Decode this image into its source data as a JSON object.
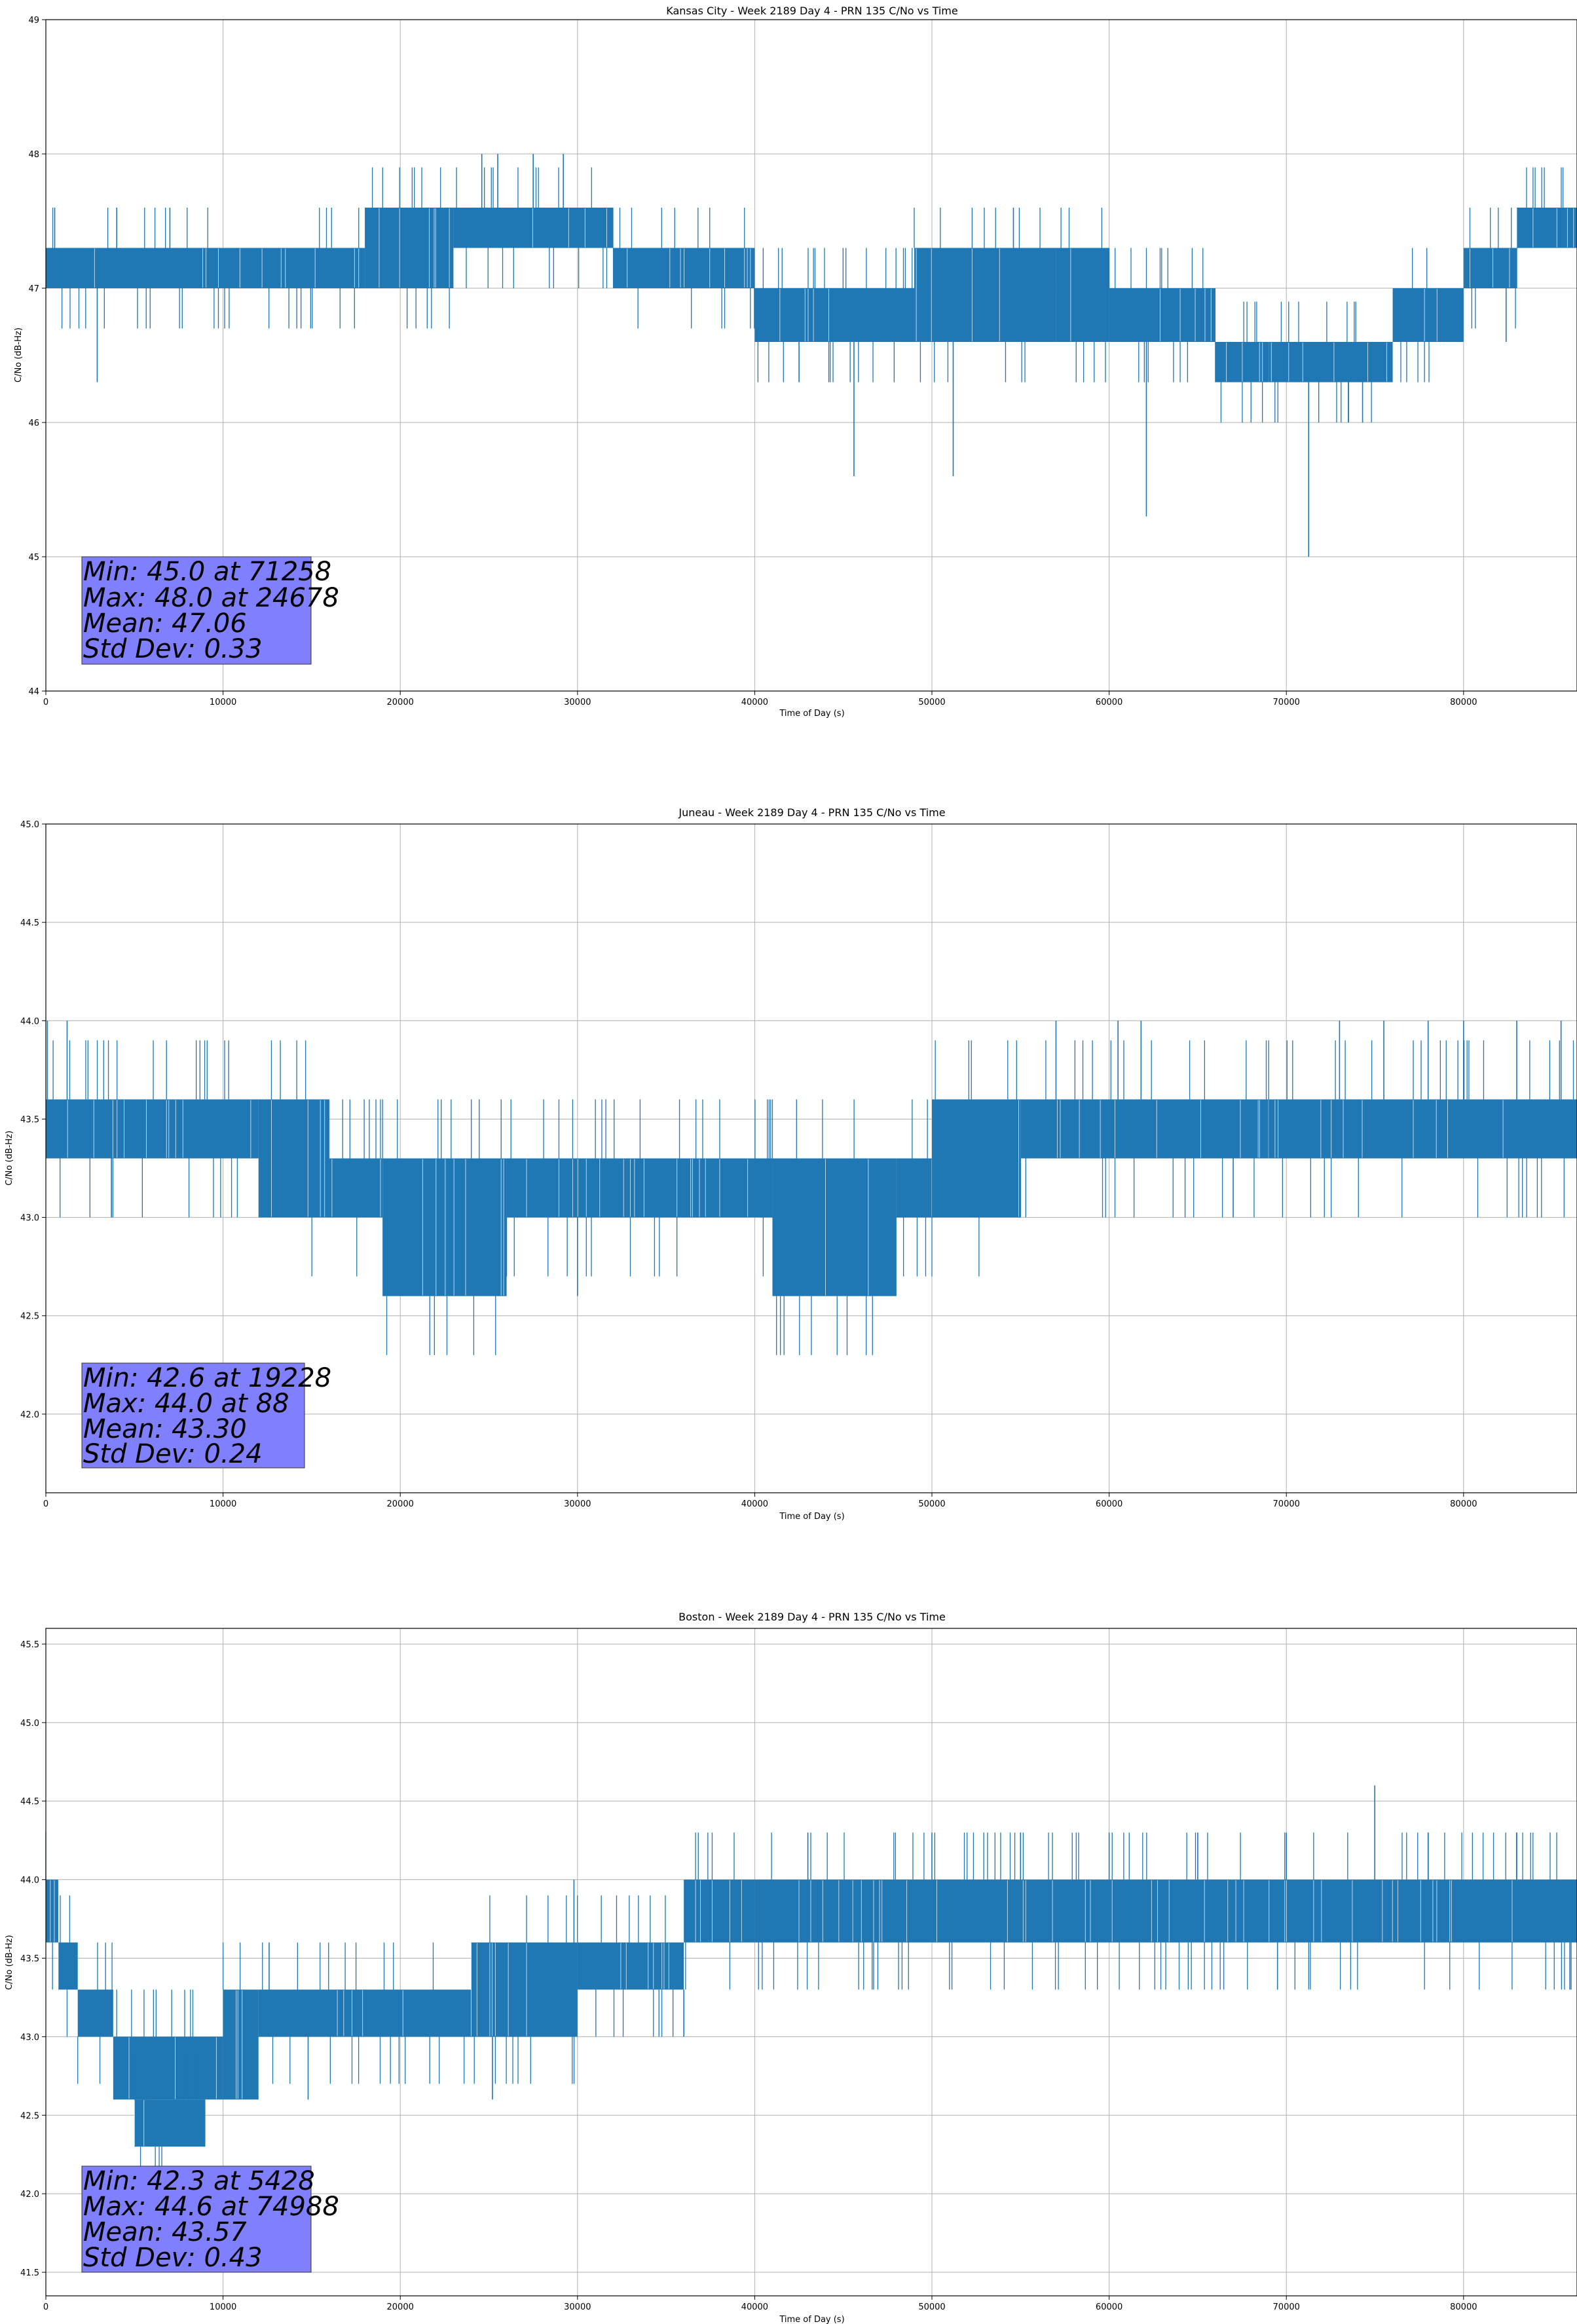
{
  "colors": {
    "series": "#1f77b4",
    "stats_box": "#8080ff",
    "grid": "#b0b0b0"
  },
  "chart_data": [
    {
      "type": "line",
      "title": "Kansas City - Week 2189 Day 4 - PRN 135 C/No vs Time",
      "xlabel": "Time of Day (s)",
      "ylabel": "C/No (dB-Hz)",
      "xlim": [
        0,
        86400
      ],
      "ylim": [
        44,
        49
      ],
      "xticks": [
        0,
        10000,
        20000,
        30000,
        40000,
        50000,
        60000,
        70000,
        80000
      ],
      "yticks": [
        44,
        45,
        46,
        47,
        48,
        49
      ],
      "ytick_labels": [
        "44",
        "45",
        "46",
        "47",
        "48",
        "49"
      ],
      "grid": true,
      "series": [
        {
          "levels": [
            {
              "x0": 0,
              "x1": 11000,
              "lo": 47.0,
              "hi": 47.3
            },
            {
              "x0": 11000,
              "x1": 18000,
              "lo": 47.0,
              "hi": 47.3
            },
            {
              "x0": 18000,
              "x1": 23000,
              "lo": 47.0,
              "hi": 47.6
            },
            {
              "x0": 23000,
              "x1": 32000,
              "lo": 47.3,
              "hi": 47.6
            },
            {
              "x0": 32000,
              "x1": 40000,
              "lo": 47.0,
              "hi": 47.3
            },
            {
              "x0": 40000,
              "x1": 49000,
              "lo": 46.6,
              "hi": 47.0
            },
            {
              "x0": 49000,
              "x1": 57000,
              "lo": 46.6,
              "hi": 47.3
            },
            {
              "x0": 57000,
              "x1": 60000,
              "lo": 46.6,
              "hi": 47.3
            },
            {
              "x0": 60000,
              "x1": 66000,
              "lo": 46.6,
              "hi": 47.0
            },
            {
              "x0": 66000,
              "x1": 69000,
              "lo": 46.3,
              "hi": 46.6
            },
            {
              "x0": 69000,
              "x1": 76000,
              "lo": 46.3,
              "hi": 46.6
            },
            {
              "x0": 76000,
              "x1": 80000,
              "lo": 46.6,
              "hi": 47.0
            },
            {
              "x0": 80000,
              "x1": 83000,
              "lo": 47.0,
              "hi": 47.3
            },
            {
              "x0": 83000,
              "x1": 86400,
              "lo": 47.3,
              "hi": 47.6
            }
          ],
          "spikes": [
            {
              "x": 500,
              "y": 47.6
            },
            {
              "x": 2900,
              "y": 46.3
            },
            {
              "x": 4000,
              "y": 47.6
            },
            {
              "x": 7000,
              "y": 47.6
            },
            {
              "x": 24600,
              "y": 48.0
            },
            {
              "x": 25500,
              "y": 48.0
            },
            {
              "x": 27500,
              "y": 48.0
            },
            {
              "x": 29200,
              "y": 48.0
            },
            {
              "x": 42500,
              "y": 46.3
            },
            {
              "x": 45600,
              "y": 45.6
            },
            {
              "x": 51200,
              "y": 45.6
            },
            {
              "x": 54600,
              "y": 47.6
            },
            {
              "x": 62100,
              "y": 45.3
            },
            {
              "x": 68800,
              "y": 46.3
            },
            {
              "x": 71258,
              "y": 45.0
            },
            {
              "x": 73500,
              "y": 46.0
            },
            {
              "x": 74300,
              "y": 46.0
            },
            {
              "x": 82400,
              "y": 46.6
            }
          ]
        }
      ],
      "stats": [
        "Min: 45.0 at 71258",
        "Max: 48.0 at 24678",
        "Mean: 47.06",
        "Std Dev: 0.33"
      ]
    },
    {
      "type": "line",
      "title": "Juneau - Week 2189 Day 4 - PRN 135 C/No vs Time",
      "xlabel": "Time of Day (s)",
      "ylabel": "C/No (dB-Hz)",
      "xlim": [
        0,
        86400
      ],
      "ylim": [
        41.6,
        45.0
      ],
      "xticks": [
        0,
        10000,
        20000,
        30000,
        40000,
        50000,
        60000,
        70000,
        80000
      ],
      "yticks": [
        42.0,
        42.5,
        43.0,
        43.5,
        44.0,
        44.5,
        45.0
      ],
      "ytick_labels": [
        "42.0",
        "42.5",
        "43.0",
        "43.5",
        "44.0",
        "44.5",
        "45.0"
      ],
      "grid": true,
      "series": [
        {
          "levels": [
            {
              "x0": 0,
              "x1": 12000,
              "lo": 43.3,
              "hi": 43.6
            },
            {
              "x0": 12000,
              "x1": 16000,
              "lo": 43.0,
              "hi": 43.6
            },
            {
              "x0": 16000,
              "x1": 19000,
              "lo": 43.0,
              "hi": 43.3
            },
            {
              "x0": 19000,
              "x1": 26000,
              "lo": 42.6,
              "hi": 43.3
            },
            {
              "x0": 26000,
              "x1": 41000,
              "lo": 43.0,
              "hi": 43.3
            },
            {
              "x0": 41000,
              "x1": 48000,
              "lo": 42.6,
              "hi": 43.3
            },
            {
              "x0": 48000,
              "x1": 50000,
              "lo": 43.0,
              "hi": 43.3
            },
            {
              "x0": 50000,
              "x1": 55000,
              "lo": 43.0,
              "hi": 43.6
            },
            {
              "x0": 55000,
              "x1": 69000,
              "lo": 43.3,
              "hi": 43.6
            },
            {
              "x0": 69000,
              "x1": 86400,
              "lo": 43.3,
              "hi": 43.6
            }
          ],
          "spikes": [
            {
              "x": 88,
              "y": 44.0
            },
            {
              "x": 1200,
              "y": 44.0
            },
            {
              "x": 3700,
              "y": 43.0
            },
            {
              "x": 30000,
              "y": 42.6
            },
            {
              "x": 57000,
              "y": 44.0
            },
            {
              "x": 60500,
              "y": 44.0
            },
            {
              "x": 61800,
              "y": 44.0
            },
            {
              "x": 67000,
              "y": 43.0
            },
            {
              "x": 73000,
              "y": 44.0
            },
            {
              "x": 75500,
              "y": 44.0
            },
            {
              "x": 78000,
              "y": 44.0
            },
            {
              "x": 80000,
              "y": 44.0
            },
            {
              "x": 83000,
              "y": 44.0
            },
            {
              "x": 85500,
              "y": 44.0
            }
          ]
        }
      ],
      "stats": [
        "Min: 42.6 at 19228",
        "Max: 44.0 at 88",
        "Mean: 43.30",
        "Std Dev: 0.24"
      ]
    },
    {
      "type": "line",
      "title": "Boston - Week 2189 Day 4 - PRN 135 C/No vs Time",
      "xlabel": "Time of Day (s)",
      "ylabel": "C/No (dB-Hz)",
      "xlim": [
        0,
        86400
      ],
      "ylim": [
        41.35,
        45.6
      ],
      "xticks": [
        0,
        10000,
        20000,
        30000,
        40000,
        50000,
        60000,
        70000,
        80000
      ],
      "yticks": [
        41.5,
        42.0,
        42.5,
        43.0,
        43.5,
        44.0,
        44.5,
        45.0,
        45.5
      ],
      "ytick_labels": [
        "41.5",
        "42.0",
        "42.5",
        "43.0",
        "43.5",
        "44.0",
        "44.5",
        "45.0",
        "45.5"
      ],
      "grid": true,
      "series": [
        {
          "levels": [
            {
              "x0": 0,
              "x1": 700,
              "lo": 43.6,
              "hi": 44.0
            },
            {
              "x0": 700,
              "x1": 1800,
              "lo": 43.3,
              "hi": 43.6
            },
            {
              "x0": 1800,
              "x1": 3800,
              "lo": 43.0,
              "hi": 43.3
            },
            {
              "x0": 3800,
              "x1": 10000,
              "lo": 42.6,
              "hi": 43.0
            },
            {
              "x0": 5000,
              "x1": 9000,
              "lo": 42.3,
              "hi": 42.6
            },
            {
              "x0": 10000,
              "x1": 12000,
              "lo": 42.6,
              "hi": 43.3
            },
            {
              "x0": 12000,
              "x1": 24000,
              "lo": 43.0,
              "hi": 43.3
            },
            {
              "x0": 24000,
              "x1": 30000,
              "lo": 43.0,
              "hi": 43.6
            },
            {
              "x0": 30000,
              "x1": 36000,
              "lo": 43.3,
              "hi": 43.6
            },
            {
              "x0": 36000,
              "x1": 40000,
              "lo": 43.6,
              "hi": 44.0
            },
            {
              "x0": 40000,
              "x1": 86400,
              "lo": 43.6,
              "hi": 44.0
            }
          ],
          "spikes": [
            {
              "x": 5428,
              "y": 42.3
            },
            {
              "x": 12600,
              "y": 43.6
            },
            {
              "x": 14800,
              "y": 42.6
            },
            {
              "x": 25200,
              "y": 42.6
            },
            {
              "x": 29800,
              "y": 44.0
            },
            {
              "x": 36000,
              "y": 43.0
            },
            {
              "x": 43000,
              "y": 44.3
            },
            {
              "x": 50000,
              "y": 44.3
            },
            {
              "x": 55000,
              "y": 44.3
            },
            {
              "x": 60000,
              "y": 44.3
            },
            {
              "x": 65000,
              "y": 44.3
            },
            {
              "x": 70000,
              "y": 44.3
            },
            {
              "x": 74988,
              "y": 44.6
            },
            {
              "x": 78000,
              "y": 44.3
            },
            {
              "x": 83000,
              "y": 44.3
            },
            {
              "x": 69500,
              "y": 43.3
            },
            {
              "x": 86000,
              "y": 43.3
            }
          ]
        }
      ],
      "stats": [
        "Min: 42.3 at 5428",
        "Max: 44.6 at 74988",
        "Mean: 43.57",
        "Std Dev: 0.43"
      ]
    }
  ]
}
